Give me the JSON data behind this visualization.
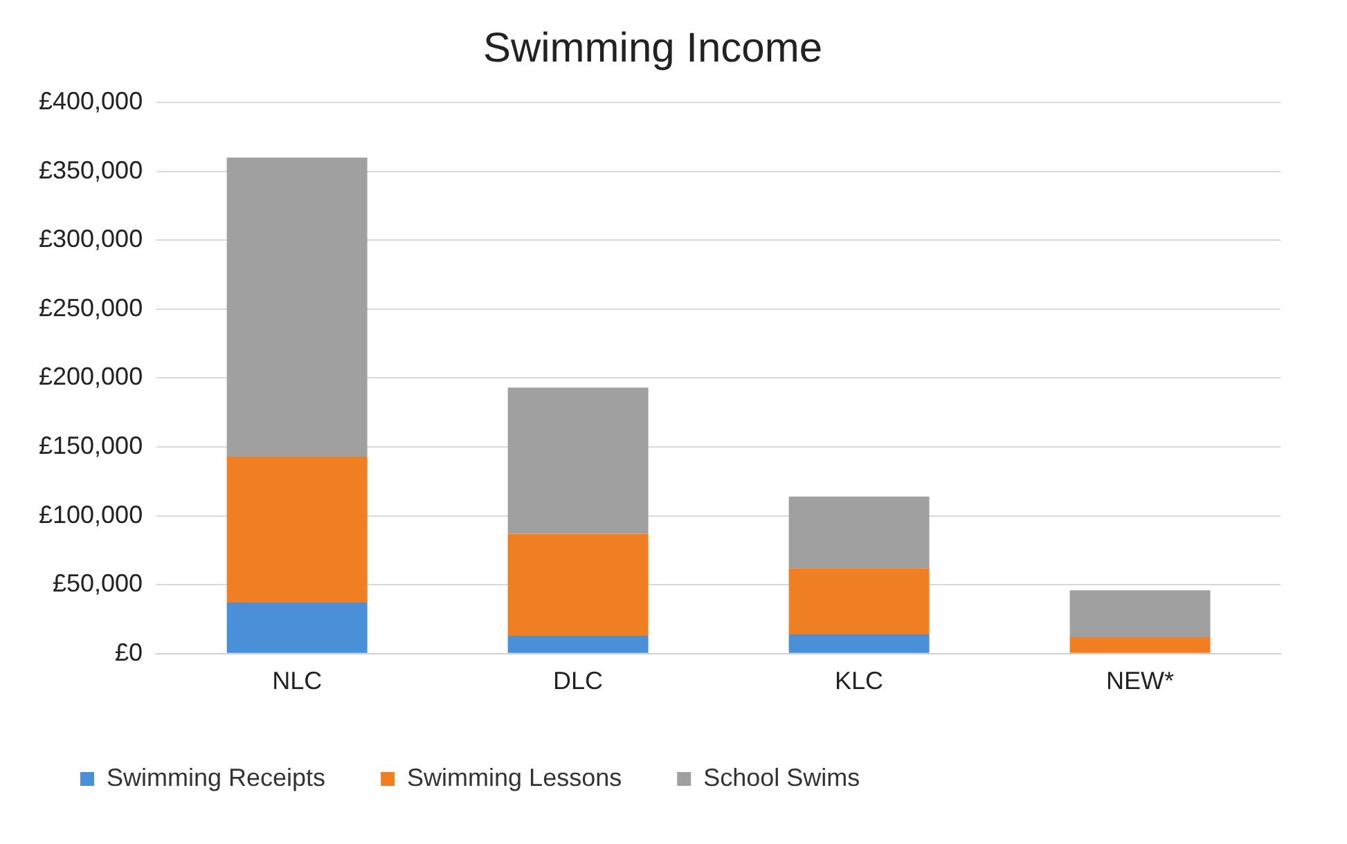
{
  "chart_data": {
    "type": "bar",
    "title": "Swimming Income",
    "categories": [
      "NLC",
      "DLC",
      "KLC",
      "NEW*"
    ],
    "stacked": true,
    "ylim": [
      0,
      400000
    ],
    "yticks": [
      {
        "value": 0,
        "label": "£0"
      },
      {
        "value": 50000,
        "label": "£50,000"
      },
      {
        "value": 100000,
        "label": "£100,000"
      },
      {
        "value": 150000,
        "label": "£150,000"
      },
      {
        "value": 200000,
        "label": "£200,000"
      },
      {
        "value": 250000,
        "label": "£250,000"
      },
      {
        "value": 300000,
        "label": "£300,000"
      },
      {
        "value": 350000,
        "label": "£350,000"
      },
      {
        "value": 400000,
        "label": "£400,000"
      }
    ],
    "grid": "y",
    "legend": "bottom",
    "series": [
      {
        "name": "Swimming Receipts",
        "color": "#4a90d9",
        "values": [
          37000,
          13000,
          14000,
          0
        ]
      },
      {
        "name": "Swimming Lessons",
        "color": "#f07f23",
        "values": [
          106000,
          74000,
          48000,
          12000
        ]
      },
      {
        "name": "School Swims",
        "color": "#a0a0a0",
        "values": [
          217000,
          106000,
          52000,
          34000
        ]
      }
    ]
  }
}
